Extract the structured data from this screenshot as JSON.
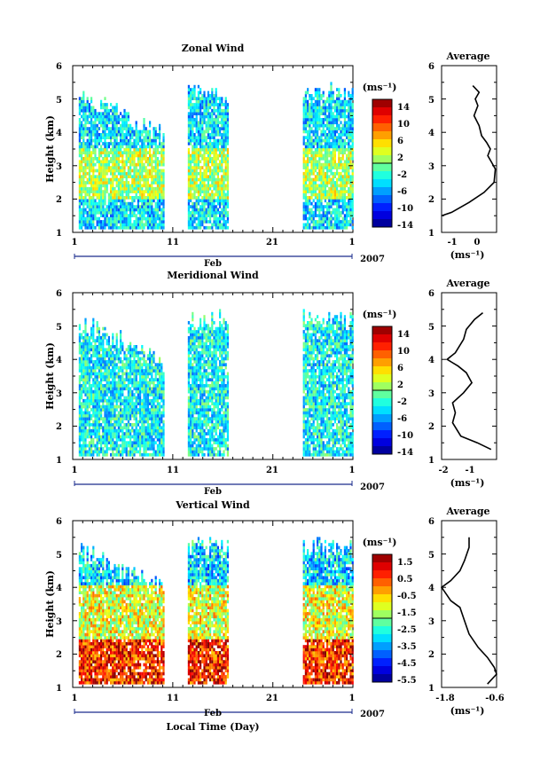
{
  "chart_data": [
    {
      "type": "heatmap",
      "title": "Zonal Wind",
      "ylabel": "Height (km)",
      "xlabel": "",
      "x_ticks": [
        "1",
        "11",
        "21",
        "1"
      ],
      "month_label": "Feb",
      "year_label": "2007",
      "xlim": [
        1,
        29
      ],
      "y_ticks": [
        "1",
        "2",
        "3",
        "4",
        "5",
        "6"
      ],
      "ylim": [
        1,
        6
      ],
      "colorbar": {
        "unit_label": "(ms⁻¹)",
        "min": -16,
        "max": 16,
        "ticks": [
          "14",
          "10",
          "6",
          "2",
          "-2",
          "-6",
          "-10",
          "-14"
        ]
      },
      "data_gaps_days": [
        [
          10,
          12.5
        ],
        [
          16.5,
          24
        ]
      ],
      "average_profile": {
        "title": "Average",
        "xlabel": "(ms⁻¹)",
        "x_ticks": [
          "-1",
          "0"
        ],
        "xlim": [
          -1.6,
          0.6
        ],
        "x": [
          -0.35,
          -0.1,
          -0.25,
          -0.15,
          -0.3,
          -0.1,
          0.0,
          0.2,
          0.35,
          0.25,
          0.4,
          0.55,
          0.5,
          0.1,
          -0.5,
          -1.2,
          -1.6
        ],
        "y": [
          5.4,
          5.2,
          5.0,
          4.8,
          4.5,
          4.2,
          3.9,
          3.7,
          3.5,
          3.3,
          3.1,
          2.9,
          2.5,
          2.2,
          1.9,
          1.6,
          1.5
        ]
      }
    },
    {
      "type": "heatmap",
      "title": "Meridional Wind",
      "ylabel": "Height (km)",
      "xlabel": "",
      "x_ticks": [
        "1",
        "11",
        "21",
        "1"
      ],
      "month_label": "Feb",
      "year_label": "2007",
      "xlim": [
        1,
        29
      ],
      "y_ticks": [
        "1",
        "2",
        "3",
        "4",
        "5",
        "6"
      ],
      "ylim": [
        1,
        6
      ],
      "colorbar": {
        "unit_label": "(ms⁻¹)",
        "min": -16,
        "max": 16,
        "ticks": [
          "14",
          "10",
          "6",
          "2",
          "-2",
          "-6",
          "-10",
          "-14"
        ]
      },
      "data_gaps_days": [
        [
          10,
          12.5
        ],
        [
          16.5,
          24
        ]
      ],
      "average_profile": {
        "title": "Average",
        "xlabel": "(ms⁻¹)",
        "x_ticks": [
          "-2",
          "-1"
        ],
        "xlim": [
          -2.1,
          -0.1
        ],
        "x": [
          -0.6,
          -0.9,
          -1.2,
          -1.3,
          -1.6,
          -1.9,
          -1.5,
          -1.2,
          -1.0,
          -1.3,
          -1.7,
          -1.6,
          -1.7,
          -1.4,
          -0.8,
          -0.3
        ],
        "y": [
          5.4,
          5.2,
          4.9,
          4.6,
          4.2,
          4.0,
          3.8,
          3.6,
          3.3,
          3.0,
          2.7,
          2.4,
          2.1,
          1.7,
          1.5,
          1.3
        ]
      }
    },
    {
      "type": "heatmap",
      "title": "Vertical Wind",
      "ylabel": "Height (km)",
      "xlabel": "Local Time (Day)",
      "x_ticks": [
        "1",
        "11",
        "21",
        "1"
      ],
      "month_label": "Feb",
      "year_label": "2007",
      "xlim": [
        1,
        29
      ],
      "y_ticks": [
        "1",
        "2",
        "3",
        "4",
        "5",
        "6"
      ],
      "ylim": [
        1,
        6
      ],
      "colorbar": {
        "unit_label": "(ms⁻¹)",
        "min": -6,
        "max": 2,
        "ticks": [
          "1.5",
          "0.5",
          "-0.5",
          "-1.5",
          "-2.5",
          "-3.5",
          "-4.5",
          "-5.5"
        ]
      },
      "data_gaps_days": [
        [
          10,
          12.5
        ],
        [
          16.5,
          24
        ]
      ],
      "average_profile": {
        "title": "Average",
        "xlabel": "(ms⁻¹)",
        "x_ticks": [
          "-1.8",
          "-0.6"
        ],
        "xlim": [
          -1.8,
          -0.6
        ],
        "x": [
          -1.2,
          -1.2,
          -1.3,
          -1.4,
          -1.6,
          -1.8,
          -1.7,
          -1.6,
          -1.4,
          -1.3,
          -1.2,
          -1.0,
          -0.8,
          -0.65,
          -0.6,
          -0.8
        ],
        "y": [
          5.5,
          5.2,
          4.8,
          4.5,
          4.2,
          4.0,
          3.8,
          3.6,
          3.4,
          3.0,
          2.6,
          2.2,
          1.9,
          1.6,
          1.4,
          1.1
        ]
      }
    }
  ]
}
